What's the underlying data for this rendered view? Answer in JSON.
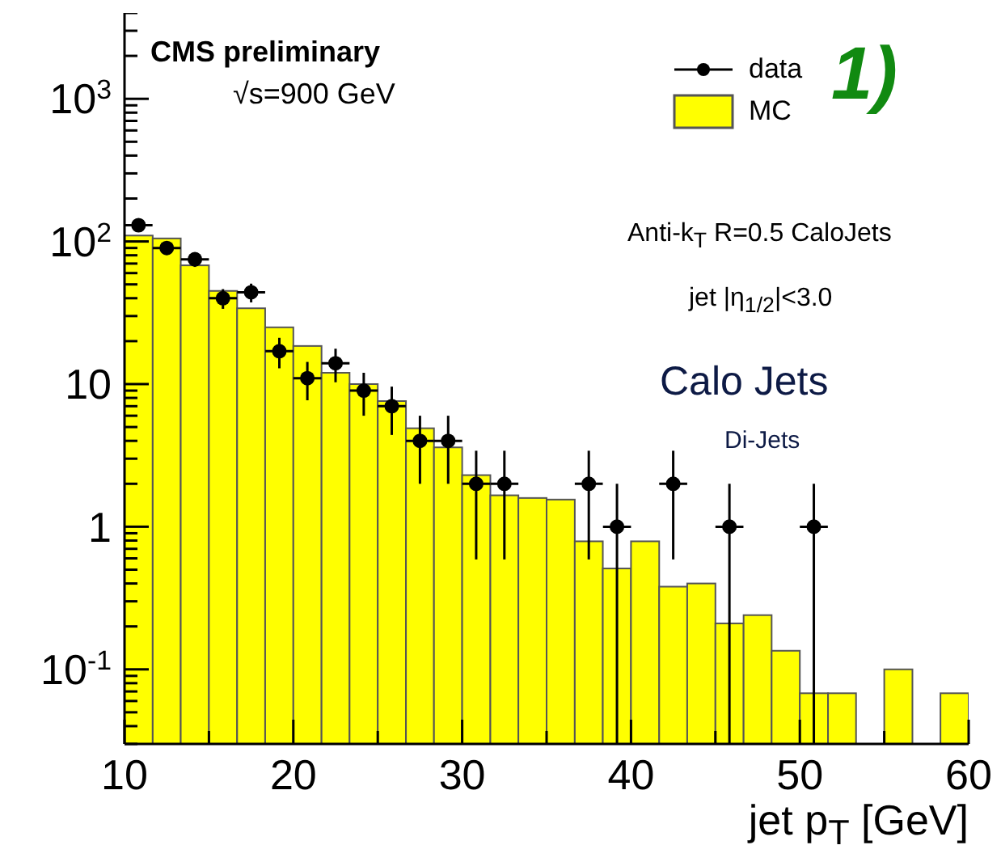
{
  "chart_data": {
    "type": "histogram",
    "annotations": [
      "CMS preliminary",
      "√s=900 GeV",
      "Anti-k$_{T}$ R=0.5 CaloJets",
      "jet |η$_{1/2}$|<3.0",
      "Calo Jets",
      "Di-Jets",
      "1)"
    ],
    "xlabel": "jet p$_{T}$ [GeV]",
    "bins": [
      10,
      11.67,
      13.33,
      15,
      16.67,
      18.33,
      20,
      21.67,
      23.33,
      25,
      26.67,
      28.33,
      30,
      31.67,
      33.33,
      35,
      36.67,
      38.33,
      40,
      41.67,
      43.33,
      45,
      46.67,
      48.33,
      50,
      51.67,
      53.33,
      55,
      56.67,
      58.33,
      60
    ],
    "series": [
      {
        "type": "histogram",
        "name": "MC",
        "color": "#ffff00",
        "values": [
          110,
          105,
          68,
          45,
          34,
          25,
          18.5,
          12,
          10,
          7.6,
          4.9,
          3.6,
          2.3,
          1.66,
          1.59,
          1.55,
          0.79,
          0.51,
          0.79,
          0.38,
          0.4,
          0.21,
          0.24,
          0.135,
          0.068,
          0.068,
          null,
          0.1,
          null,
          0.068
        ]
      },
      {
        "type": "scatter",
        "name": "data",
        "color": "#000000",
        "marker": "circle",
        "x": [
          10.83,
          12.5,
          14.17,
          15.83,
          17.5,
          19.17,
          20.83,
          22.5,
          24.17,
          25.83,
          27.5,
          29.17,
          30.83,
          32.5,
          37.5,
          39.17,
          42.5,
          45.83,
          50.83
        ],
        "values": [
          130,
          90,
          75,
          40,
          44,
          17,
          11,
          14,
          9,
          7,
          4,
          4,
          2,
          2,
          2,
          1,
          2,
          1,
          1
        ],
        "errors": [
          11,
          9.5,
          8.7,
          6.3,
          6.6,
          4.1,
          3.3,
          3.7,
          3,
          2.6,
          2,
          2,
          1.41,
          1.41,
          1.41,
          [
            0.97,
            1
          ],
          1.41,
          [
            0.97,
            1
          ],
          [
            0.97,
            1
          ]
        ],
        "xerrors": [
          0.83,
          0.83,
          0.83,
          0.83,
          0.83,
          0.83,
          0.83,
          0.83,
          0.83,
          0.83,
          0.83,
          0.83,
          0.83,
          0.83,
          0.83,
          0.83,
          0.83,
          0.83,
          0.83
        ]
      }
    ],
    "xlim": [
      10,
      60
    ],
    "xticks": [
      10,
      {
        "value": 15,
        "label": null
      },
      20,
      {
        "value": 25,
        "label": null
      },
      30,
      {
        "value": 35,
        "label": null
      },
      40,
      {
        "value": 45,
        "label": null
      },
      50,
      {
        "value": 55,
        "label": null
      },
      60
    ],
    "ylim": [
      0.03,
      4000
    ],
    "yticks": [
      {
        "value": 0.03,
        "label": null
      },
      {
        "value": 0.04,
        "label": null
      },
      {
        "value": 0.05,
        "label": null
      },
      {
        "value": 0.06,
        "label": null
      },
      {
        "value": 0.07,
        "label": null
      },
      {
        "value": 0.08,
        "label": null
      },
      {
        "value": 0.09,
        "label": null
      },
      {
        "value": 0.1,
        "label": "10$^{-1}$"
      },
      {
        "value": 0.2,
        "label": null
      },
      {
        "value": 0.3,
        "label": null
      },
      {
        "value": 0.4,
        "label": null
      },
      {
        "value": 0.5,
        "label": null
      },
      {
        "value": 0.6,
        "label": null
      },
      {
        "value": 0.7,
        "label": null
      },
      {
        "value": 0.8,
        "label": null
      },
      {
        "value": 0.9,
        "label": null
      },
      1,
      {
        "value": 2,
        "label": null
      },
      {
        "value": 3,
        "label": null
      },
      {
        "value": 4,
        "label": null
      },
      {
        "value": 5,
        "label": null
      },
      {
        "value": 6,
        "label": null
      },
      {
        "value": 7,
        "label": null
      },
      {
        "value": 8,
        "label": null
      },
      {
        "value": 9,
        "label": null
      },
      10,
      {
        "value": 20,
        "label": null
      },
      {
        "value": 30,
        "label": null
      },
      {
        "value": 40,
        "label": null
      },
      {
        "value": 50,
        "label": null
      },
      {
        "value": 60,
        "label": null
      },
      {
        "value": 70,
        "label": null
      },
      {
        "value": 80,
        "label": null
      },
      {
        "value": 90,
        "label": null
      },
      {
        "value": 100,
        "label": "10$^{2}$"
      },
      {
        "value": 200,
        "label": null
      },
      {
        "value": 300,
        "label": null
      },
      {
        "value": 400,
        "label": null
      },
      {
        "value": 500,
        "label": null
      },
      {
        "value": 600,
        "label": null
      },
      {
        "value": 700,
        "label": null
      },
      {
        "value": 800,
        "label": null
      },
      {
        "value": 900,
        "label": null
      },
      {
        "value": 1000,
        "label": "10$^{3}$"
      },
      {
        "value": 2000,
        "label": null
      },
      {
        "value": 3000,
        "label": null
      },
      {
        "value": 4000,
        "label": null
      }
    ],
    "log": true,
    "legend": "top right"
  }
}
